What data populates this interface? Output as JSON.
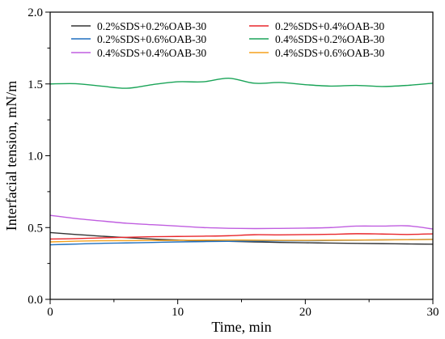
{
  "chart_data": {
    "type": "line",
    "xlabel": "Time, min",
    "ylabel": "Interfacial tension, mN/m",
    "xlim": [
      0,
      30
    ],
    "ylim": [
      0,
      2.0
    ],
    "xticks": [
      0,
      10,
      20,
      30
    ],
    "yticks": [
      0.0,
      0.5,
      1.0,
      1.5,
      2.0
    ],
    "xtick_labels": [
      "0",
      "10",
      "20",
      "30"
    ],
    "ytick_labels": [
      "0.0",
      "0.5",
      "1.0",
      "1.5",
      "2.0"
    ],
    "grid": false,
    "legend_position": "top",
    "x": [
      0,
      2,
      4,
      6,
      8,
      10,
      12,
      14,
      16,
      18,
      20,
      22,
      24,
      26,
      28,
      30
    ],
    "series": [
      {
        "name": "0.2%SDS+0.2%OAB-30",
        "color": "#333333",
        "values": [
          0.465,
          0.452,
          0.44,
          0.43,
          0.42,
          0.413,
          0.406,
          0.404,
          0.4,
          0.396,
          0.394,
          0.392,
          0.39,
          0.388,
          0.386,
          0.384
        ]
      },
      {
        "name": "0.2%SDS+0.4%OAB-30",
        "color": "#e8262b",
        "values": [
          0.42,
          0.423,
          0.428,
          0.432,
          0.436,
          0.438,
          0.44,
          0.443,
          0.45,
          0.449,
          0.451,
          0.453,
          0.457,
          0.455,
          0.452,
          0.456
        ]
      },
      {
        "name": "0.2%SDS+0.6%OAB-30",
        "color": "#1f6fbf",
        "values": [
          0.38,
          0.385,
          0.39,
          0.393,
          0.396,
          0.4,
          0.402,
          0.404,
          0.406,
          0.407,
          0.408,
          0.41,
          0.412,
          0.414,
          0.416,
          0.418
        ]
      },
      {
        "name": "0.4%SDS+0.2%OAB-30",
        "color": "#1aa458",
        "values": [
          1.5,
          1.502,
          1.485,
          1.47,
          1.495,
          1.515,
          1.515,
          1.54,
          1.505,
          1.51,
          1.495,
          1.485,
          1.49,
          1.482,
          1.49,
          1.505
        ]
      },
      {
        "name": "0.4%SDS+0.4%OAB-30",
        "color": "#c05ee0",
        "values": [
          0.585,
          0.563,
          0.546,
          0.53,
          0.52,
          0.51,
          0.5,
          0.495,
          0.493,
          0.494,
          0.496,
          0.5,
          0.51,
          0.51,
          0.512,
          0.49
        ]
      },
      {
        "name": "0.4%SDS+0.6%OAB-30",
        "color": "#f5a11d",
        "values": [
          0.4,
          0.405,
          0.408,
          0.409,
          0.41,
          0.411,
          0.412,
          0.413,
          0.412,
          0.411,
          0.411,
          0.412,
          0.413,
          0.414,
          0.415,
          0.417
        ]
      }
    ]
  }
}
